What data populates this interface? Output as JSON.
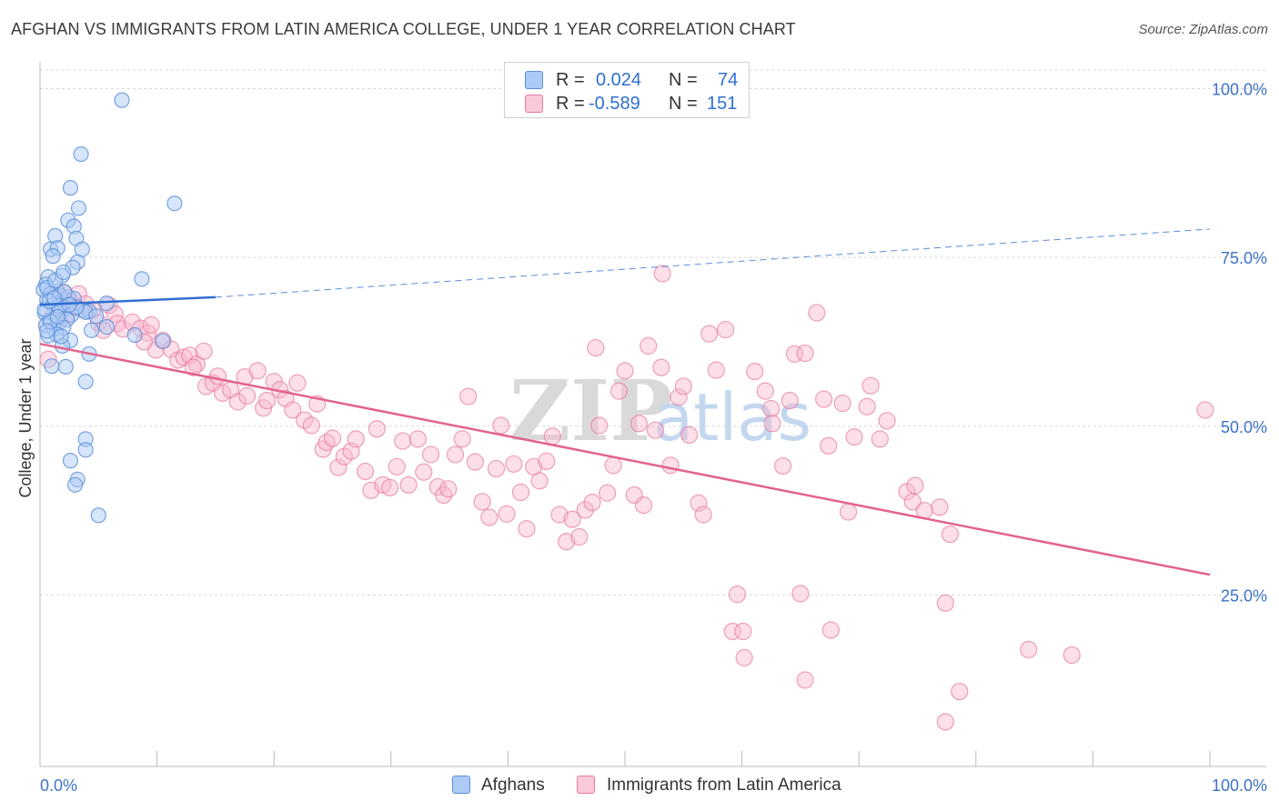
{
  "header": {
    "title": "AFGHAN VS IMMIGRANTS FROM LATIN AMERICA COLLEGE, UNDER 1 YEAR CORRELATION CHART",
    "source": "Source: ZipAtlas.com"
  },
  "watermark": {
    "zip": "ZIP",
    "atlas": "atlas"
  },
  "legend": {
    "r_label": "R =",
    "n_label": "N =",
    "series": [
      {
        "name": "Afghans",
        "r": "0.024",
        "n": "74"
      },
      {
        "name": "Immigrants from Latin America",
        "r": "-0.589",
        "n": "151"
      }
    ]
  },
  "colors": {
    "afghans_fill": "#aecbf5",
    "afghans_stroke": "#5a8fd8",
    "afghans_line": "#2f6fd1",
    "latin_fill": "#f9b8ce",
    "latin_stroke": "#e7799f",
    "latin_line": "#e3628f",
    "axis_text": "#3d72c9",
    "grid": "#d8d8d8"
  },
  "chart_data": {
    "type": "scatter",
    "title": "AFGHAN VS IMMIGRANTS FROM LATIN AMERICA COLLEGE, UNDER 1 YEAR CORRELATION CHART",
    "xlabel": "",
    "ylabel": "College, Under 1 year",
    "xlim": [
      0,
      100
    ],
    "ylim": [
      0,
      105
    ],
    "x_tick_labels": [
      "0.0%",
      "100.0%"
    ],
    "y_tick_labels": [
      "25.0%",
      "50.0%",
      "75.0%",
      "100.0%"
    ],
    "y_ticks": [
      25,
      50,
      75,
      100
    ],
    "grid": true,
    "legend_position": "top-center",
    "series": [
      {
        "name": "Afghans",
        "r": 0.024,
        "n": 74,
        "trend": {
          "x0": 0,
          "y0": 68.0,
          "x1": 15,
          "y1": 69.1,
          "dashed_to_x": 100,
          "dashed_to_y": 79.2
        },
        "points": [
          [
            7.0,
            98.3
          ],
          [
            3.5,
            90.3
          ],
          [
            11.5,
            83.0
          ],
          [
            2.6,
            85.3
          ],
          [
            3.3,
            82.3
          ],
          [
            2.4,
            80.5
          ],
          [
            1.3,
            78.2
          ],
          [
            2.9,
            79.6
          ],
          [
            3.1,
            77.8
          ],
          [
            0.9,
            76.2
          ],
          [
            1.5,
            76.4
          ],
          [
            3.6,
            76.2
          ],
          [
            1.1,
            75.2
          ],
          [
            3.2,
            74.3
          ],
          [
            2.8,
            73.5
          ],
          [
            1.9,
            72.3
          ],
          [
            0.7,
            72.1
          ],
          [
            8.7,
            71.8
          ],
          [
            0.5,
            71.0
          ],
          [
            1.5,
            70.0
          ],
          [
            0.3,
            70.2
          ],
          [
            0.9,
            69.6
          ],
          [
            1.7,
            69.4
          ],
          [
            2.4,
            69.1
          ],
          [
            0.6,
            68.7
          ],
          [
            5.7,
            68.2
          ],
          [
            1.1,
            68.0
          ],
          [
            2.2,
            67.5
          ],
          [
            3.6,
            67.2
          ],
          [
            4.2,
            67.0
          ],
          [
            0.4,
            66.8
          ],
          [
            1.8,
            66.9
          ],
          [
            2.7,
            66.5
          ],
          [
            3.9,
            66.9
          ],
          [
            0.8,
            65.7
          ],
          [
            1.6,
            65.3
          ],
          [
            2.3,
            65.8
          ],
          [
            0.5,
            64.9
          ],
          [
            1.2,
            64.4
          ],
          [
            2.0,
            64.6
          ],
          [
            4.4,
            64.2
          ],
          [
            5.7,
            64.7
          ],
          [
            1.4,
            63.6
          ],
          [
            0.7,
            63.4
          ],
          [
            2.6,
            62.7
          ],
          [
            8.1,
            63.5
          ],
          [
            1.9,
            61.9
          ],
          [
            10.5,
            62.6
          ],
          [
            0.9,
            65.5
          ],
          [
            1.6,
            67.8
          ],
          [
            2.9,
            68.9
          ],
          [
            4.2,
            60.7
          ],
          [
            2.2,
            58.8
          ],
          [
            1.0,
            58.9
          ],
          [
            3.9,
            56.6
          ],
          [
            3.9,
            48.1
          ],
          [
            3.9,
            46.5
          ],
          [
            2.6,
            44.9
          ],
          [
            3.2,
            42.1
          ],
          [
            3.0,
            41.3
          ],
          [
            5.0,
            36.8
          ],
          [
            0.6,
            70.5
          ],
          [
            1.3,
            71.6
          ],
          [
            2.1,
            69.9
          ],
          [
            0.4,
            67.3
          ],
          [
            1.8,
            63.3
          ],
          [
            3.1,
            67.6
          ],
          [
            0.8,
            68.5
          ],
          [
            1.5,
            66.2
          ],
          [
            2.5,
            68.0
          ],
          [
            4.8,
            66.3
          ],
          [
            0.6,
            64.1
          ],
          [
            2.0,
            72.8
          ],
          [
            1.2,
            69.0
          ]
        ]
      },
      {
        "name": "Immigrants from Latin America",
        "r": -0.589,
        "n": 151,
        "trend": {
          "x0": 0,
          "y0": 62.2,
          "x1": 100,
          "y1": 28.0
        },
        "points": [
          [
            0.7,
            59.9
          ],
          [
            1.2,
            66.7
          ],
          [
            2.0,
            69.8
          ],
          [
            2.6,
            68.6
          ],
          [
            3.3,
            69.6
          ],
          [
            3.9,
            68.1
          ],
          [
            4.5,
            67.2
          ],
          [
            5.0,
            65.3
          ],
          [
            5.9,
            67.9
          ],
          [
            6.4,
            66.6
          ],
          [
            6.6,
            65.2
          ],
          [
            7.1,
            64.4
          ],
          [
            7.9,
            65.4
          ],
          [
            8.6,
            64.5
          ],
          [
            9.2,
            63.8
          ],
          [
            9.9,
            61.3
          ],
          [
            10.5,
            62.7
          ],
          [
            11.2,
            61.4
          ],
          [
            11.8,
            59.8
          ],
          [
            12.3,
            60.2
          ],
          [
            12.8,
            60.5
          ],
          [
            13.4,
            59.2
          ],
          [
            14.0,
            61.1
          ],
          [
            14.2,
            55.9
          ],
          [
            14.8,
            56.4
          ],
          [
            15.2,
            57.4
          ],
          [
            15.6,
            54.9
          ],
          [
            16.3,
            55.4
          ],
          [
            16.9,
            53.6
          ],
          [
            17.5,
            57.3
          ],
          [
            17.7,
            54.5
          ],
          [
            18.6,
            58.2
          ],
          [
            19.1,
            52.7
          ],
          [
            19.4,
            53.8
          ],
          [
            20.0,
            56.6
          ],
          [
            20.5,
            55.4
          ],
          [
            21.0,
            54.1
          ],
          [
            21.6,
            52.4
          ],
          [
            22.0,
            56.4
          ],
          [
            22.6,
            50.9
          ],
          [
            23.2,
            50.1
          ],
          [
            23.7,
            53.3
          ],
          [
            24.2,
            46.6
          ],
          [
            24.5,
            47.6
          ],
          [
            25.0,
            48.2
          ],
          [
            25.5,
            43.9
          ],
          [
            26.0,
            45.5
          ],
          [
            26.6,
            46.3
          ],
          [
            27.0,
            48.1
          ],
          [
            27.8,
            43.3
          ],
          [
            28.3,
            40.5
          ],
          [
            28.8,
            49.6
          ],
          [
            29.3,
            41.3
          ],
          [
            29.9,
            40.9
          ],
          [
            30.5,
            44.0
          ],
          [
            31.0,
            47.8
          ],
          [
            31.5,
            41.3
          ],
          [
            32.3,
            48.1
          ],
          [
            32.8,
            43.2
          ],
          [
            33.4,
            45.8
          ],
          [
            34.0,
            41.0
          ],
          [
            34.5,
            39.8
          ],
          [
            34.9,
            40.7
          ],
          [
            35.5,
            45.8
          ],
          [
            36.1,
            48.1
          ],
          [
            36.6,
            54.4
          ],
          [
            37.2,
            44.7
          ],
          [
            37.8,
            38.8
          ],
          [
            38.4,
            36.5
          ],
          [
            39.0,
            43.7
          ],
          [
            39.4,
            50.1
          ],
          [
            39.9,
            37.0
          ],
          [
            40.5,
            44.4
          ],
          [
            41.1,
            40.2
          ],
          [
            41.6,
            34.8
          ],
          [
            42.2,
            44.0
          ],
          [
            42.7,
            41.9
          ],
          [
            43.3,
            44.8
          ],
          [
            43.8,
            48.5
          ],
          [
            44.4,
            36.9
          ],
          [
            45.0,
            32.9
          ],
          [
            45.5,
            36.2
          ],
          [
            46.1,
            33.6
          ],
          [
            46.6,
            37.6
          ],
          [
            47.2,
            38.7
          ],
          [
            47.8,
            50.1
          ],
          [
            47.5,
            61.6
          ],
          [
            48.5,
            40.1
          ],
          [
            49.0,
            44.2
          ],
          [
            49.5,
            55.2
          ],
          [
            50.0,
            58.2
          ],
          [
            50.8,
            39.8
          ],
          [
            51.2,
            50.4
          ],
          [
            51.6,
            38.3
          ],
          [
            52.0,
            61.9
          ],
          [
            52.6,
            49.4
          ],
          [
            53.1,
            58.7
          ],
          [
            53.9,
            44.2
          ],
          [
            53.2,
            72.6
          ],
          [
            54.6,
            54.3
          ],
          [
            55.0,
            55.9
          ],
          [
            55.5,
            48.7
          ],
          [
            56.3,
            38.6
          ],
          [
            56.7,
            36.9
          ],
          [
            57.2,
            63.7
          ],
          [
            57.8,
            58.3
          ],
          [
            58.6,
            64.3
          ],
          [
            59.6,
            25.1
          ],
          [
            59.2,
            19.6
          ],
          [
            60.1,
            19.6
          ],
          [
            60.2,
            15.7
          ],
          [
            61.1,
            58.1
          ],
          [
            62.0,
            55.2
          ],
          [
            62.5,
            52.6
          ],
          [
            62.6,
            50.4
          ],
          [
            63.5,
            44.1
          ],
          [
            64.1,
            53.8
          ],
          [
            65.0,
            25.2
          ],
          [
            64.5,
            60.7
          ],
          [
            65.4,
            60.8
          ],
          [
            65.4,
            12.4
          ],
          [
            66.4,
            66.8
          ],
          [
            67.0,
            54.0
          ],
          [
            67.4,
            47.1
          ],
          [
            67.6,
            19.8
          ],
          [
            68.6,
            53.4
          ],
          [
            69.1,
            37.3
          ],
          [
            69.6,
            48.4
          ],
          [
            70.7,
            52.9
          ],
          [
            71.0,
            56.0
          ],
          [
            71.8,
            48.1
          ],
          [
            72.4,
            50.8
          ],
          [
            74.1,
            40.3
          ],
          [
            74.6,
            38.8
          ],
          [
            74.8,
            41.2
          ],
          [
            75.6,
            37.5
          ],
          [
            76.9,
            38.0
          ],
          [
            77.4,
            23.8
          ],
          [
            77.4,
            6.2
          ],
          [
            77.8,
            34.0
          ],
          [
            78.6,
            10.7
          ],
          [
            84.5,
            16.9
          ],
          [
            88.2,
            16.1
          ],
          [
            99.6,
            52.4
          ],
          [
            3.0,
            67.6
          ],
          [
            5.4,
            64.2
          ],
          [
            8.9,
            62.5
          ],
          [
            13.1,
            58.7
          ],
          [
            1.7,
            68.9
          ],
          [
            2.3,
            66.3
          ],
          [
            9.5,
            65.0
          ]
        ]
      }
    ]
  }
}
